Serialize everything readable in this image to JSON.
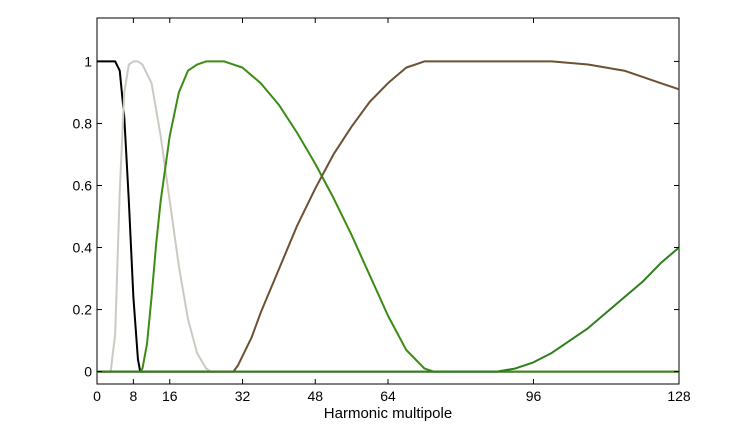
{
  "chart_data": {
    "type": "line",
    "title": "",
    "xlabel": "Harmonic multipole",
    "ylabel": "",
    "xlim": [
      0,
      128
    ],
    "ylim": [
      -0.04,
      1.14
    ],
    "xticks": [
      0,
      8,
      16,
      32,
      48,
      64,
      96,
      128
    ],
    "xtick_labels": [
      "0",
      "8",
      "16",
      "32",
      "48",
      "64",
      "96",
      "128"
    ],
    "yticks": [
      0,
      0.2,
      0.4,
      0.6,
      0.8,
      1
    ],
    "ytick_labels": [
      "0",
      "0.2",
      "0.4",
      "0.6",
      "0.8",
      "1"
    ],
    "grid": false,
    "legend": "none",
    "series": [
      {
        "color": "#000000",
        "x": [
          0,
          4,
          5,
          6,
          7,
          8,
          9,
          9.5,
          10,
          128
        ],
        "y": [
          1,
          1,
          0.97,
          0.82,
          0.55,
          0.24,
          0.04,
          0,
          0,
          0
        ]
      },
      {
        "color": "#cdc9c2",
        "x": [
          0,
          3,
          4,
          5,
          6,
          7,
          8,
          9,
          10,
          12,
          14,
          16,
          18,
          20,
          22,
          24,
          25,
          128
        ],
        "y": [
          0,
          0,
          0.12,
          0.58,
          0.9,
          0.99,
          1,
          1,
          0.99,
          0.93,
          0.76,
          0.55,
          0.34,
          0.17,
          0.06,
          0.01,
          0,
          0
        ]
      },
      {
        "color": "#3c8c14",
        "x": [
          0,
          9.5,
          10,
          11,
          12,
          13,
          14,
          16,
          18,
          20,
          22,
          24,
          26,
          28,
          30,
          32,
          36,
          40,
          44,
          48,
          52,
          56,
          60,
          64,
          68,
          72,
          74,
          76,
          128
        ],
        "y": [
          0,
          0,
          0.01,
          0.09,
          0.24,
          0.41,
          0.55,
          0.76,
          0.9,
          0.97,
          0.99,
          1,
          1,
          1,
          0.99,
          0.98,
          0.93,
          0.86,
          0.77,
          0.67,
          0.56,
          0.44,
          0.31,
          0.18,
          0.07,
          0.01,
          0,
          0,
          0
        ]
      },
      {
        "color": "#6e5032",
        "x": [
          0,
          30,
          31,
          32,
          34,
          36,
          40,
          44,
          48,
          52,
          56,
          60,
          64,
          68,
          72,
          76,
          80,
          90,
          100,
          108,
          112,
          116,
          120,
          124,
          128
        ],
        "y": [
          0,
          0,
          0.02,
          0.05,
          0.11,
          0.19,
          0.33,
          0.47,
          0.59,
          0.7,
          0.79,
          0.87,
          0.93,
          0.98,
          1,
          1,
          1,
          1,
          1,
          0.99,
          0.98,
          0.97,
          0.95,
          0.93,
          0.91
        ]
      },
      {
        "color": "#2e7d1e",
        "x": [
          0,
          88,
          90,
          92,
          94,
          96,
          100,
          104,
          108,
          112,
          116,
          120,
          124,
          128
        ],
        "y": [
          0,
          0,
          0.005,
          0.01,
          0.02,
          0.03,
          0.06,
          0.1,
          0.14,
          0.19,
          0.24,
          0.29,
          0.35,
          0.4
        ]
      }
    ]
  }
}
